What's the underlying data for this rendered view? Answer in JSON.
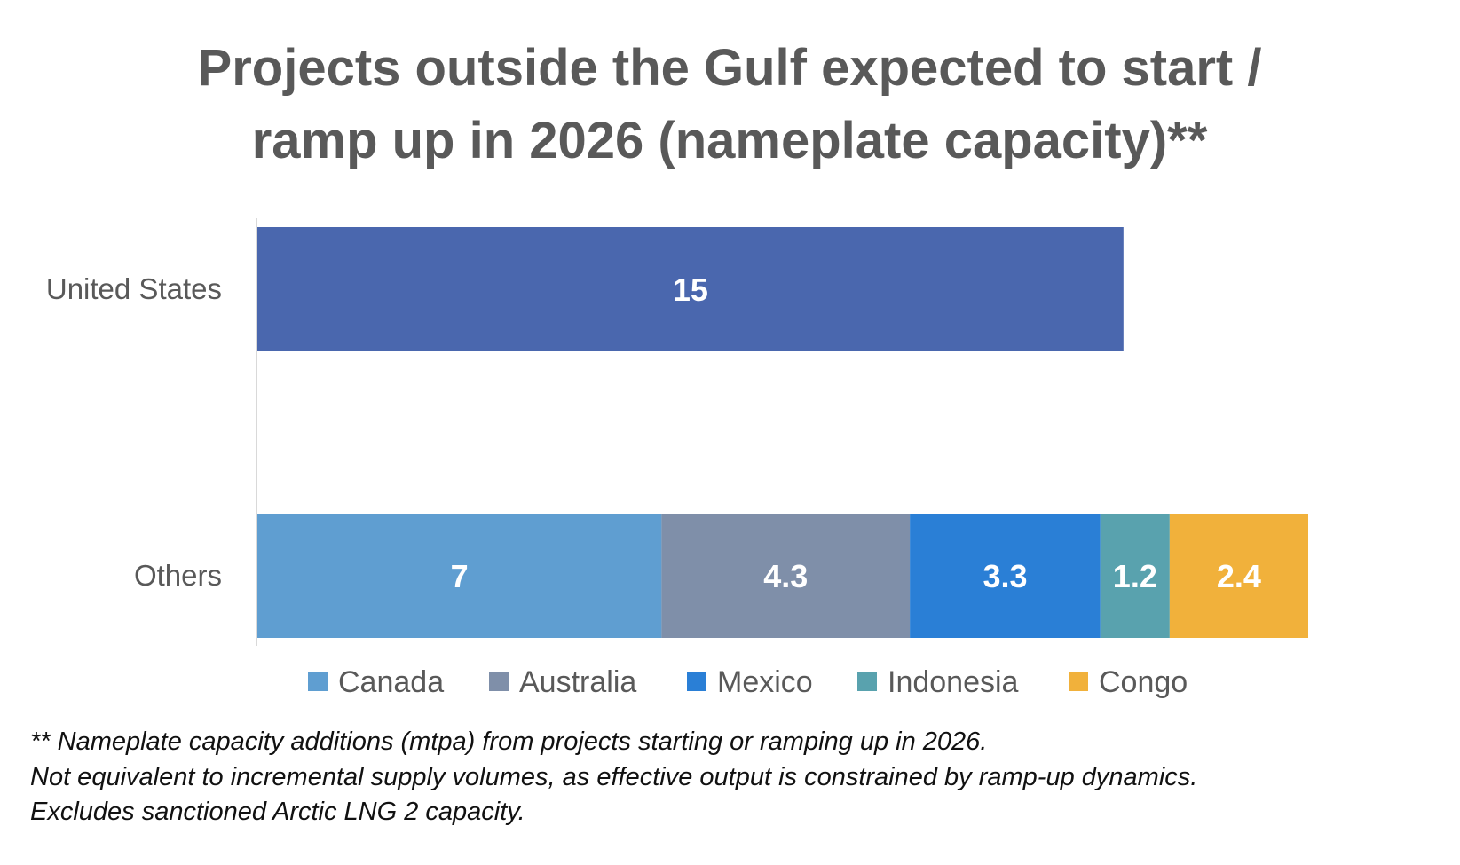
{
  "chart_data": {
    "type": "bar",
    "orientation": "horizontal",
    "stacked": true,
    "title_lines": [
      "Projects outside the Gulf expected to start /",
      "ramp up in 2026 (nameplate capacity)**"
    ],
    "categories": [
      "United States",
      "Others"
    ],
    "series": [
      {
        "name": "United States",
        "values": [
          15,
          null
        ],
        "color": "#4A67AE",
        "in_legend": false
      },
      {
        "name": "Canada",
        "values": [
          null,
          7
        ],
        "color": "#5F9ED1",
        "in_legend": true
      },
      {
        "name": "Australia",
        "values": [
          null,
          4.3
        ],
        "color": "#7F8FA9",
        "in_legend": true
      },
      {
        "name": "Mexico",
        "values": [
          null,
          3.3
        ],
        "color": "#2A7FD6",
        "in_legend": true
      },
      {
        "name": "Indonesia",
        "values": [
          null,
          1.2
        ],
        "color": "#59A2AE",
        "in_legend": true
      },
      {
        "name": "Congo",
        "values": [
          null,
          2.4
        ],
        "color": "#F1B13B",
        "in_legend": true
      }
    ],
    "xlim": [
      0,
      18.2
    ],
    "grid": false,
    "x_axis_visible": false,
    "legend_placement": "bottom",
    "data_labels": true
  },
  "footnote": [
    "** Nameplate capacity additions (mtpa) from projects starting or ramping up in 2026.",
    "Not equivalent to incremental supply volumes, as effective output is constrained by ramp-up dynamics.",
    "Excludes sanctioned Arctic LNG 2 capacity."
  ]
}
